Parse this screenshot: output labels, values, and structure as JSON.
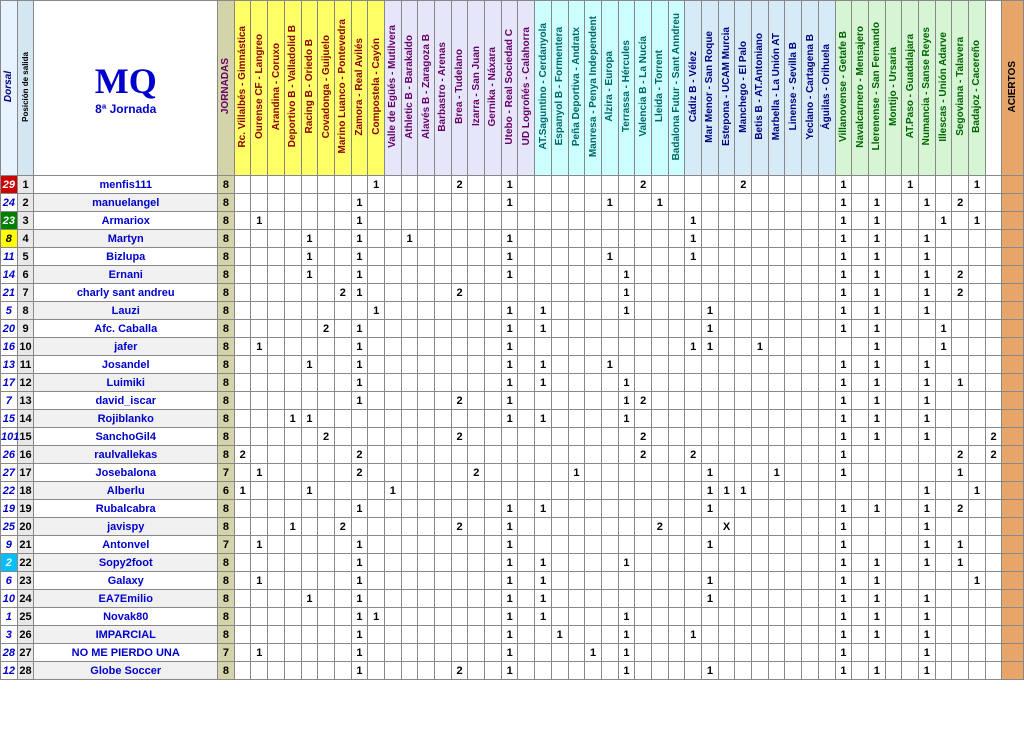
{
  "headers": {
    "dorsal": "Dorsal",
    "posicion": "Posición de salida",
    "title_main": "MQ",
    "title_sub": "8ª Jornada",
    "jornadas": "JORNADAS",
    "aciertos": "ACIERTOS"
  },
  "match_groups": [
    {
      "color": "yellow",
      "matches": [
        "Rc. Villalbés - Gimnástica",
        "Ourense CF - Langreo",
        "Arandina - Coruxo",
        "Deportivo B - Valladolid B",
        "Racing B - Oriedo B",
        "Covadonga - Guijuelo",
        "Marino Luanco - Pontevedra",
        "Zamora - Real Avilés",
        "Compostela - Cayón"
      ]
    },
    {
      "color": "lavender",
      "matches": [
        "Valle de Egüés - Mutilvera",
        "Athletic B - Barakaldo",
        "Alavés B - Zaragoza B",
        "Barbastro - Arenas",
        "Brea - Tudelano",
        "Izarra - San Juan",
        "Gernika - Náxara",
        "Utebo - Real Sociedad C",
        "UD Logroñés - Calahorra"
      ]
    },
    {
      "color": "cyan",
      "matches": [
        "AT.Saguntino - Cerdanyola",
        "Espanyol B - Formentera",
        "Peña Deportiva - Andratx",
        "Manresa - Penya Independent",
        "Alzira - Europa",
        "Terrassa - Hércules",
        "Valencia B - La Nucía",
        "Lleida - Torrent",
        "Badalona Futur - Sant Anndreu"
      ]
    },
    {
      "color": "lightblue",
      "matches": [
        "Cádiz B - Vélez",
        "Mar Menor - San Roque",
        "Estepona - UCAM Murcia",
        "Manchego - El Palo",
        "Betis B - AT.Antoniano",
        "Marbella - La Unión AT",
        "Linense - Sevilla B",
        "Yeclano - Cartagena B",
        "Águilas - Orihuela"
      ]
    },
    {
      "color": "lightgreen",
      "matches": [
        "Villanovense - Getafe B",
        "Navalcarnero - Mensajero",
        "Llerenense - San Fernando",
        "Montijo - Ursaria",
        "AT.Paso - Guadalajara",
        "Numancia - Sanse Reyes",
        "Illescas - Unión Adarve",
        "Segoviana - Talavera",
        "Badajoz - Cacereño"
      ]
    },
    {
      "color": "none",
      "matches": [
        ""
      ]
    }
  ],
  "dorsal_colors": {
    "default_bg": "#ffffff",
    "default_fg": "#0000cc",
    "29": {
      "bg": "#cc0000",
      "fg": "#ffffff"
    },
    "23": {
      "bg": "#008000",
      "fg": "#ffffff"
    },
    "8": {
      "bg": "#ffff00",
      "fg": "#000000"
    },
    "2": {
      "bg": "#00bfff",
      "fg": "#ffffff"
    }
  },
  "rows": [
    {
      "dorsal": "29",
      "pos": "1",
      "name": "menfis111",
      "jorn": "8",
      "vals": {
        "8": "1",
        "13": "2",
        "16": "1",
        "24": "2",
        "30": "2",
        "36": "1",
        "40": "1",
        "44": "1"
      }
    },
    {
      "dorsal": "24",
      "pos": "2",
      "name": "manuelangel",
      "jorn": "8",
      "vals": {
        "7": "1",
        "16": "1",
        "22": "1",
        "25": "1",
        "36": "1",
        "38": "1",
        "41": "1",
        "43": "2"
      }
    },
    {
      "dorsal": "23",
      "pos": "3",
      "name": "Armariox",
      "jorn": "8",
      "vals": {
        "1": "1",
        "7": "1",
        "27": "1",
        "36": "1",
        "38": "1",
        "42": "1",
        "44": "1"
      }
    },
    {
      "dorsal": "8",
      "pos": "4",
      "name": "Martyn",
      "jorn": "8",
      "vals": {
        "4": "1",
        "7": "1",
        "10": "1",
        "16": "1",
        "27": "1",
        "36": "1",
        "38": "1",
        "41": "1"
      }
    },
    {
      "dorsal": "11",
      "pos": "5",
      "name": "Bizlupa",
      "jorn": "8",
      "vals": {
        "4": "1",
        "7": "1",
        "16": "1",
        "22": "1",
        "27": "1",
        "36": "1",
        "38": "1",
        "41": "1"
      }
    },
    {
      "dorsal": "14",
      "pos": "6",
      "name": "Ernani",
      "jorn": "8",
      "vals": {
        "4": "1",
        "7": "1",
        "16": "1",
        "23": "1",
        "36": "1",
        "38": "1",
        "41": "1",
        "43": "2"
      }
    },
    {
      "dorsal": "21",
      "pos": "7",
      "name": "charly sant andreu",
      "jorn": "8",
      "vals": {
        "6": "2",
        "7": "1",
        "13": "2",
        "23": "1",
        "36": "1",
        "38": "1",
        "41": "1",
        "43": "2"
      }
    },
    {
      "dorsal": "5",
      "pos": "8",
      "name": "Lauzi",
      "jorn": "8",
      "vals": {
        "8": "1",
        "16": "1",
        "18": "1",
        "23": "1",
        "28": "1",
        "36": "1",
        "38": "1",
        "41": "1"
      }
    },
    {
      "dorsal": "20",
      "pos": "9",
      "name": "Afc. Caballa",
      "jorn": "8",
      "vals": {
        "5": "2",
        "7": "1",
        "16": "1",
        "18": "1",
        "28": "1",
        "36": "1",
        "38": "1",
        "42": "1"
      }
    },
    {
      "dorsal": "16",
      "pos": "10",
      "name": "jafer",
      "jorn": "8",
      "vals": {
        "1": "1",
        "7": "1",
        "16": "1",
        "27": "1",
        "28": "1",
        "31": "1",
        "38": "1",
        "42": "1"
      }
    },
    {
      "dorsal": "13",
      "pos": "11",
      "name": "Josandel",
      "jorn": "8",
      "vals": {
        "4": "1",
        "7": "1",
        "16": "1",
        "18": "1",
        "22": "1",
        "36": "1",
        "38": "1",
        "41": "1"
      }
    },
    {
      "dorsal": "17",
      "pos": "12",
      "name": "Luimiki",
      "jorn": "8",
      "vals": {
        "7": "1",
        "16": "1",
        "18": "1",
        "23": "1",
        "36": "1",
        "38": "1",
        "41": "1",
        "43": "1"
      }
    },
    {
      "dorsal": "7",
      "pos": "13",
      "name": "david_iscar",
      "jorn": "8",
      "vals": {
        "7": "1",
        "13": "2",
        "16": "1",
        "23": "1",
        "24": "2",
        "36": "1",
        "38": "1",
        "41": "1"
      }
    },
    {
      "dorsal": "15",
      "pos": "14",
      "name": "Rojiblanko",
      "jorn": "8",
      "vals": {
        "3": "1",
        "4": "1",
        "16": "1",
        "18": "1",
        "23": "1",
        "36": "1",
        "38": "1",
        "41": "1"
      }
    },
    {
      "dorsal": "101",
      "pos": "15",
      "name": "SanchoGil4",
      "jorn": "8",
      "vals": {
        "5": "2",
        "13": "2",
        "24": "2",
        "36": "1",
        "38": "1",
        "41": "1",
        "45": "2"
      }
    },
    {
      "dorsal": "26",
      "pos": "16",
      "name": "raulvallekas",
      "jorn": "8",
      "vals": {
        "0": "2",
        "7": "2",
        "24": "2",
        "27": "2",
        "36": "1",
        "43": "2",
        "45": "2"
      }
    },
    {
      "dorsal": "27",
      "pos": "17",
      "name": "Josebalona",
      "jorn": "7",
      "vals": {
        "1": "1",
        "7": "2",
        "14": "2",
        "20": "1",
        "28": "1",
        "32": "1",
        "36": "1",
        "43": "1"
      }
    },
    {
      "dorsal": "22",
      "pos": "18",
      "name": "Alberlu",
      "jorn": "6",
      "vals": {
        "0": "1",
        "4": "1",
        "9": "1",
        "28": "1",
        "29": "1",
        "30": "1",
        "41": "1",
        "44": "1"
      }
    },
    {
      "dorsal": "19",
      "pos": "19",
      "name": "Rubalcabra",
      "jorn": "8",
      "vals": {
        "7": "1",
        "16": "1",
        "18": "1",
        "28": "1",
        "36": "1",
        "38": "1",
        "41": "1",
        "43": "2"
      }
    },
    {
      "dorsal": "25",
      "pos": "20",
      "name": "javispy",
      "jorn": "8",
      "vals": {
        "3": "1",
        "6": "2",
        "13": "2",
        "16": "1",
        "25": "2",
        "29": "X",
        "36": "1",
        "41": "1"
      }
    },
    {
      "dorsal": "9",
      "pos": "21",
      "name": "Antonvel",
      "jorn": "7",
      "vals": {
        "1": "1",
        "7": "1",
        "16": "1",
        "28": "1",
        "36": "1",
        "41": "1",
        "43": "1"
      }
    },
    {
      "dorsal": "2",
      "pos": "22",
      "name": "Sopy2foot",
      "jorn": "8",
      "vals": {
        "7": "1",
        "16": "1",
        "18": "1",
        "23": "1",
        "36": "1",
        "38": "1",
        "41": "1",
        "43": "1"
      }
    },
    {
      "dorsal": "6",
      "pos": "23",
      "name": "Galaxy",
      "jorn": "8",
      "vals": {
        "1": "1",
        "7": "1",
        "16": "1",
        "18": "1",
        "28": "1",
        "36": "1",
        "38": "1",
        "44": "1"
      }
    },
    {
      "dorsal": "10",
      "pos": "24",
      "name": "EA7Emilio",
      "jorn": "8",
      "vals": {
        "4": "1",
        "7": "1",
        "16": "1",
        "18": "1",
        "28": "1",
        "36": "1",
        "38": "1",
        "41": "1"
      }
    },
    {
      "dorsal": "1",
      "pos": "25",
      "name": "Novak80",
      "jorn": "8",
      "vals": {
        "7": "1",
        "8": "1",
        "16": "1",
        "18": "1",
        "23": "1",
        "36": "1",
        "38": "1",
        "41": "1"
      }
    },
    {
      "dorsal": "3",
      "pos": "26",
      "name": "IMPARCIAL",
      "jorn": "8",
      "vals": {
        "7": "1",
        "16": "1",
        "19": "1",
        "23": "1",
        "27": "1",
        "36": "1",
        "38": "1",
        "41": "1"
      }
    },
    {
      "dorsal": "28",
      "pos": "27",
      "name": "NO ME PIERDO UNA",
      "jorn": "7",
      "vals": {
        "1": "1",
        "7": "1",
        "16": "1",
        "21": "1",
        "23": "1",
        "36": "1",
        "41": "1"
      }
    },
    {
      "dorsal": "12",
      "pos": "28",
      "name": "Globe Soccer",
      "jorn": "8",
      "vals": {
        "7": "1",
        "13": "2",
        "16": "1",
        "23": "1",
        "28": "1",
        "36": "1",
        "38": "1",
        "41": "1"
      }
    }
  ]
}
